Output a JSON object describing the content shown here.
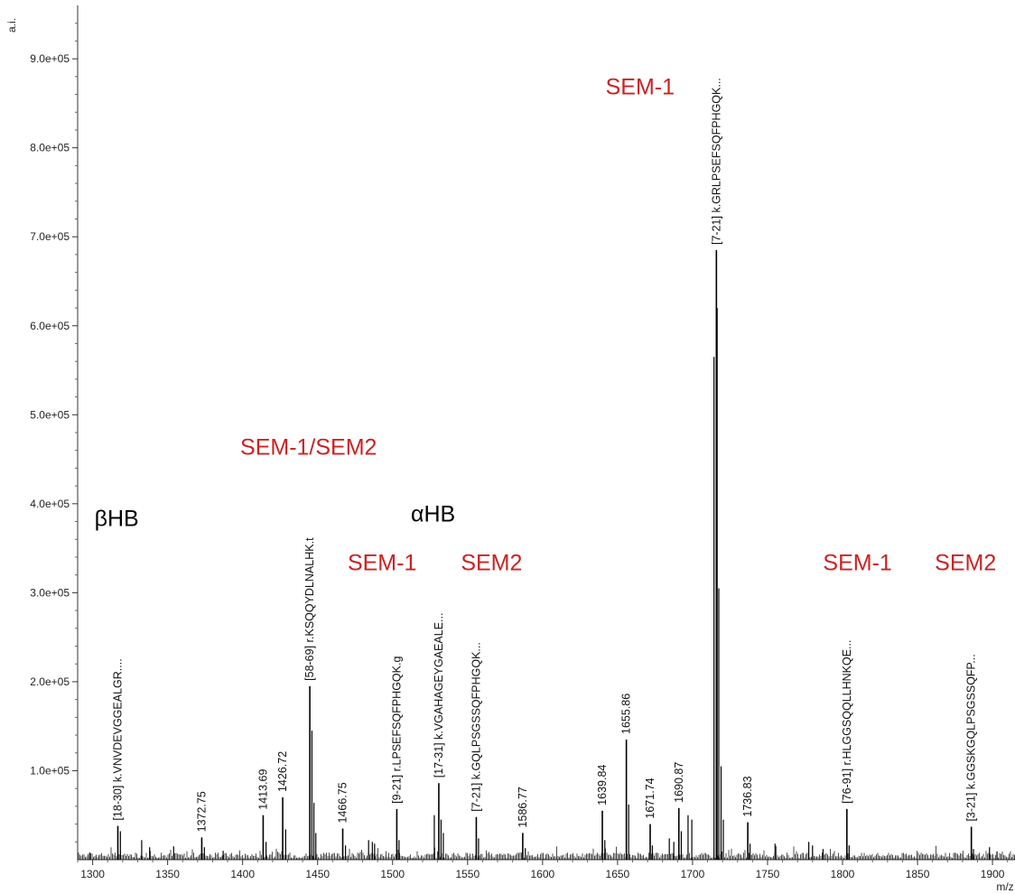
{
  "chart_data": {
    "type": "line",
    "title": "",
    "xlabel": "m/z",
    "ylabel": "a.i.",
    "xlim": [
      1290,
      1915
    ],
    "ylim": [
      0,
      960000
    ],
    "x_ticks": [
      1300,
      1350,
      1400,
      1450,
      1500,
      1550,
      1600,
      1650,
      1700,
      1750,
      1800,
      1850,
      1900
    ],
    "y_ticks": [
      100000,
      200000,
      300000,
      400000,
      500000,
      600000,
      700000,
      800000,
      900000
    ],
    "y_tick_labels": [
      "1.0e+05",
      "2.0e+05",
      "3.0e+05",
      "4.0e+05",
      "5.0e+05",
      "6.0e+05",
      "7.0e+05",
      "8.0e+05",
      "9.0e+05"
    ],
    "grid": false,
    "line_color": "#000000",
    "peaks": [
      {
        "mz": 1316.8,
        "intensity": 38000,
        "label": "[18-30] k.VNVDEVGGEALGR...."
      },
      {
        "mz": 1372.75,
        "intensity": 25000,
        "label": "1372.75"
      },
      {
        "mz": 1413.69,
        "intensity": 50000,
        "label": "1413.69"
      },
      {
        "mz": 1426.72,
        "intensity": 70000,
        "label": "1426.72"
      },
      {
        "mz": 1444.8,
        "intensity": 195000,
        "label": "[58-69] r.KSQQYDLNALHK.t"
      },
      {
        "mz": 1466.75,
        "intensity": 35000,
        "label": "1466.75"
      },
      {
        "mz": 1502.8,
        "intensity": 57000,
        "label": "[9-21] r.LPSEFSQFPHGQK.g"
      },
      {
        "mz": 1530.8,
        "intensity": 86000,
        "label": "[17-31] k.VGAHAGEYGAEALE..."
      },
      {
        "mz": 1555.8,
        "intensity": 48000,
        "label": "[7-21] k.GQLPSGSSQFPHGQK..."
      },
      {
        "mz": 1586.77,
        "intensity": 30000,
        "label": "1586.77"
      },
      {
        "mz": 1639.84,
        "intensity": 55000,
        "label": "1639.84"
      },
      {
        "mz": 1655.86,
        "intensity": 135000,
        "label": "1655.86"
      },
      {
        "mz": 1671.74,
        "intensity": 40000,
        "label": "1671.74"
      },
      {
        "mz": 1690.87,
        "intensity": 58000,
        "label": "1690.87"
      },
      {
        "mz": 1715.9,
        "intensity": 685000,
        "label": "[7-21] k.GRLPSEFSQFPHGQK..."
      },
      {
        "mz": 1736.83,
        "intensity": 42000,
        "label": "1736.83"
      },
      {
        "mz": 1802.9,
        "intensity": 57000,
        "label": "[76-91] r.HLGGSQQLLHNKQE..."
      },
      {
        "mz": 1885.9,
        "intensity": 37000,
        "label": "[3-21] k.GGSKGQLPSGSSQFP..."
      }
    ],
    "minor_peaks": [
      {
        "mz": 1298,
        "intensity": 8000
      },
      {
        "mz": 1318.5,
        "intensity": 32000
      },
      {
        "mz": 1332.7,
        "intensity": 22000
      },
      {
        "mz": 1338,
        "intensity": 14000
      },
      {
        "mz": 1354,
        "intensity": 15000
      },
      {
        "mz": 1374.5,
        "intensity": 14000
      },
      {
        "mz": 1387,
        "intensity": 10000
      },
      {
        "mz": 1415.6,
        "intensity": 20000
      },
      {
        "mz": 1428.7,
        "intensity": 34000
      },
      {
        "mz": 1446.2,
        "intensity": 145000
      },
      {
        "mz": 1447.5,
        "intensity": 64000
      },
      {
        "mz": 1448.8,
        "intensity": 30000
      },
      {
        "mz": 1468.6,
        "intensity": 16000
      },
      {
        "mz": 1484,
        "intensity": 22000
      },
      {
        "mz": 1486.5,
        "intensity": 20000
      },
      {
        "mz": 1488,
        "intensity": 18000
      },
      {
        "mz": 1504.3,
        "intensity": 22000
      },
      {
        "mz": 1527.8,
        "intensity": 50000
      },
      {
        "mz": 1532.3,
        "intensity": 45000
      },
      {
        "mz": 1533.8,
        "intensity": 30000
      },
      {
        "mz": 1557.3,
        "intensity": 24000
      },
      {
        "mz": 1588.5,
        "intensity": 13000
      },
      {
        "mz": 1641.5,
        "intensity": 22000
      },
      {
        "mz": 1657.4,
        "intensity": 62000
      },
      {
        "mz": 1673.2,
        "intensity": 16000
      },
      {
        "mz": 1684.5,
        "intensity": 24000
      },
      {
        "mz": 1687.5,
        "intensity": 20000
      },
      {
        "mz": 1692.5,
        "intensity": 32000
      },
      {
        "mz": 1697,
        "intensity": 50000
      },
      {
        "mz": 1699.5,
        "intensity": 45000
      },
      {
        "mz": 1714.3,
        "intensity": 565000
      },
      {
        "mz": 1716.4,
        "intensity": 620000
      },
      {
        "mz": 1717.5,
        "intensity": 305000
      },
      {
        "mz": 1719,
        "intensity": 105000
      },
      {
        "mz": 1720.5,
        "intensity": 45000
      },
      {
        "mz": 1738.3,
        "intensity": 18000
      },
      {
        "mz": 1755,
        "intensity": 18000
      },
      {
        "mz": 1777.5,
        "intensity": 20000
      },
      {
        "mz": 1780,
        "intensity": 16000
      },
      {
        "mz": 1787,
        "intensity": 12000
      },
      {
        "mz": 1804.4,
        "intensity": 16000
      },
      {
        "mz": 1887.3,
        "intensity": 12000
      },
      {
        "mz": 1898,
        "intensity": 14000
      },
      {
        "mz": 1903,
        "intensity": 9000
      }
    ],
    "annotations": [
      {
        "text": "βHB",
        "color": "#000000",
        "mz": 1316,
        "intensity": 375000
      },
      {
        "text": "SEM-1/SEM2",
        "color": "#cc2222",
        "mz": 1444,
        "intensity": 455000
      },
      {
        "text": "SEM-1",
        "color": "#cc2222",
        "mz": 1493,
        "intensity": 325000
      },
      {
        "text": "αHB",
        "color": "#000000",
        "mz": 1527,
        "intensity": 380000
      },
      {
        "text": "SEM2",
        "color": "#cc2222",
        "mz": 1566,
        "intensity": 325000
      },
      {
        "text": "SEM-1",
        "color": "#cc2222",
        "mz": 1665,
        "intensity": 860000
      },
      {
        "text": "SEM-1",
        "color": "#cc2222",
        "mz": 1810,
        "intensity": 325000
      },
      {
        "text": "SEM2",
        "color": "#cc2222",
        "mz": 1882,
        "intensity": 325000
      }
    ]
  }
}
